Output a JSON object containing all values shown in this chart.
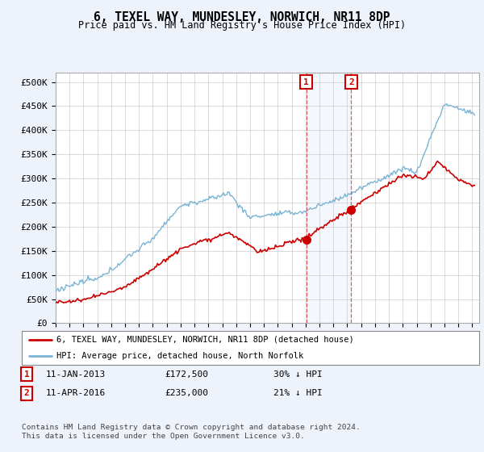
{
  "title": "6, TEXEL WAY, MUNDESLEY, NORWICH, NR11 8DP",
  "subtitle": "Price paid vs. HM Land Registry's House Price Index (HPI)",
  "ylabel_ticks": [
    "£0",
    "£50K",
    "£100K",
    "£150K",
    "£200K",
    "£250K",
    "£300K",
    "£350K",
    "£400K",
    "£450K",
    "£500K"
  ],
  "ytick_values": [
    0,
    50000,
    100000,
    150000,
    200000,
    250000,
    300000,
    350000,
    400000,
    450000,
    500000
  ],
  "ylim": [
    0,
    520000
  ],
  "xlim_start": 1995.0,
  "xlim_end": 2025.5,
  "hpi_color": "#7ab3d4",
  "price_color": "#cc0000",
  "background_color": "#eef2fa",
  "plot_bg_color": "#ffffff",
  "grid_color": "#cccccc",
  "transaction1_x": 2013.04,
  "transaction1_y": 172500,
  "transaction2_x": 2016.28,
  "transaction2_y": 235000,
  "legend_line1": "6, TEXEL WAY, MUNDESLEY, NORWICH, NR11 8DP (detached house)",
  "legend_line2": "HPI: Average price, detached house, North Norfolk",
  "annotation1_date": "11-JAN-2013",
  "annotation1_price": "£172,500",
  "annotation1_hpi": "30% ↓ HPI",
  "annotation2_date": "11-APR-2016",
  "annotation2_price": "£235,000",
  "annotation2_hpi": "21% ↓ HPI",
  "footer": "Contains HM Land Registry data © Crown copyright and database right 2024.\nThis data is licensed under the Open Government Licence v3.0."
}
